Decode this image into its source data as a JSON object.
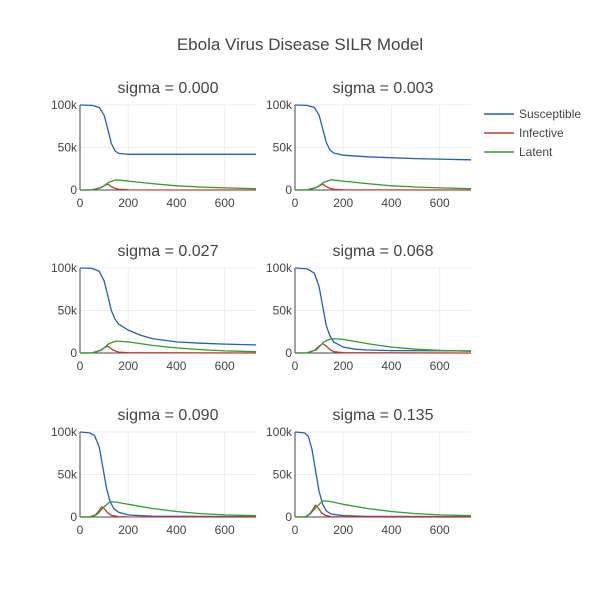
{
  "title": "Ebola Virus Disease SILR Model",
  "colors": {
    "Susceptible": "#1f5fbf",
    "Infective": "#c0392b",
    "Latent": "#2e9e2e",
    "grid": "#eeeeee",
    "axis": "#444444",
    "text": "#444444"
  },
  "legend": {
    "placement": "top-right",
    "items": [
      "Susceptible",
      "Infective",
      "Latent"
    ]
  },
  "chart_data": [
    {
      "type": "line",
      "title": "sigma = 0.000",
      "xlim": [
        0,
        730
      ],
      "ylim": [
        0,
        100000
      ],
      "xticks": [
        0,
        200,
        400,
        600
      ],
      "xtick_labels": [
        "0",
        "200",
        "400",
        "600"
      ],
      "yticks": [
        0,
        50000,
        100000
      ],
      "ytick_labels": [
        "0",
        "50k",
        "100k"
      ],
      "series": [
        {
          "name": "Susceptible",
          "x": [
            0,
            50,
            80,
            100,
            115,
            130,
            145,
            160,
            200,
            300,
            730
          ],
          "y": [
            100000,
            99500,
            97000,
            88000,
            72000,
            55000,
            46000,
            43000,
            42000,
            42000,
            42000
          ]
        },
        {
          "name": "Infective",
          "x": [
            0,
            50,
            80,
            100,
            115,
            125,
            140,
            160,
            200,
            730
          ],
          "y": [
            0,
            0,
            2000,
            5000,
            7000,
            5000,
            2500,
            800,
            200,
            0
          ]
        },
        {
          "name": "Latent",
          "x": [
            0,
            50,
            90,
            120,
            150,
            200,
            300,
            400,
            500,
            600,
            730
          ],
          "y": [
            0,
            200,
            3000,
            9000,
            12000,
            10500,
            7500,
            5000,
            3500,
            2500,
            1500
          ]
        }
      ]
    },
    {
      "type": "line",
      "title": "sigma = 0.003",
      "xlim": [
        0,
        730
      ],
      "ylim": [
        0,
        100000
      ],
      "xticks": [
        0,
        200,
        400,
        600
      ],
      "xtick_labels": [
        "0",
        "200",
        "400",
        "600"
      ],
      "yticks": [
        0,
        50000,
        100000
      ],
      "ytick_labels": [
        "0",
        "50k",
        "100k"
      ],
      "series": [
        {
          "name": "Susceptible",
          "x": [
            0,
            50,
            80,
            100,
            115,
            130,
            145,
            160,
            200,
            300,
            500,
            730
          ],
          "y": [
            100000,
            99500,
            97000,
            88000,
            72000,
            56000,
            47000,
            43500,
            41000,
            39000,
            37000,
            35500
          ]
        },
        {
          "name": "Infective",
          "x": [
            0,
            50,
            80,
            100,
            115,
            125,
            140,
            160,
            200,
            730
          ],
          "y": [
            0,
            0,
            2000,
            5000,
            7000,
            5000,
            2500,
            800,
            200,
            0
          ]
        },
        {
          "name": "Latent",
          "x": [
            0,
            50,
            90,
            120,
            150,
            200,
            300,
            400,
            500,
            600,
            730
          ],
          "y": [
            0,
            200,
            3000,
            9000,
            12000,
            10500,
            7500,
            5000,
            3500,
            2500,
            1500
          ]
        }
      ]
    },
    {
      "type": "line",
      "title": "sigma = 0.027",
      "xlim": [
        0,
        730
      ],
      "ylim": [
        0,
        100000
      ],
      "xticks": [
        0,
        200,
        400,
        600
      ],
      "xtick_labels": [
        "0",
        "200",
        "400",
        "600"
      ],
      "yticks": [
        0,
        50000,
        100000
      ],
      "ytick_labels": [
        "0",
        "50k",
        "100k"
      ],
      "series": [
        {
          "name": "Susceptible",
          "x": [
            0,
            50,
            80,
            100,
            115,
            130,
            145,
            160,
            200,
            250,
            300,
            400,
            500,
            600,
            730
          ],
          "y": [
            100000,
            99500,
            96000,
            85000,
            68000,
            50000,
            40000,
            34000,
            27000,
            21000,
            17000,
            13000,
            11500,
            10500,
            9500
          ]
        },
        {
          "name": "Infective",
          "x": [
            0,
            50,
            80,
            100,
            115,
            125,
            140,
            160,
            200,
            730
          ],
          "y": [
            0,
            0,
            2500,
            6000,
            8000,
            6000,
            3000,
            1000,
            300,
            0
          ]
        },
        {
          "name": "Latent",
          "x": [
            0,
            50,
            90,
            120,
            150,
            200,
            300,
            400,
            500,
            600,
            730
          ],
          "y": [
            0,
            200,
            3500,
            11000,
            14000,
            13000,
            9000,
            6000,
            4000,
            2500,
            1500
          ]
        }
      ]
    },
    {
      "type": "line",
      "title": "sigma = 0.068",
      "xlim": [
        0,
        730
      ],
      "ylim": [
        0,
        100000
      ],
      "xticks": [
        0,
        200,
        400,
        600
      ],
      "xtick_labels": [
        "0",
        "200",
        "400",
        "600"
      ],
      "yticks": [
        0,
        50000,
        100000
      ],
      "ytick_labels": [
        "0",
        "50k",
        "100k"
      ],
      "series": [
        {
          "name": "Susceptible",
          "x": [
            0,
            50,
            80,
            100,
            115,
            130,
            145,
            160,
            200,
            250,
            300,
            400,
            730
          ],
          "y": [
            100000,
            99000,
            94000,
            78000,
            55000,
            32000,
            20000,
            13000,
            7000,
            4500,
            3500,
            2800,
            2500
          ]
        },
        {
          "name": "Infective",
          "x": [
            0,
            50,
            80,
            100,
            115,
            130,
            145,
            160,
            200,
            730
          ],
          "y": [
            0,
            0,
            3000,
            8000,
            11000,
            8000,
            4000,
            1500,
            300,
            0
          ]
        },
        {
          "name": "Latent",
          "x": [
            0,
            50,
            90,
            120,
            150,
            200,
            300,
            400,
            500,
            600,
            730
          ],
          "y": [
            0,
            200,
            4000,
            13000,
            17000,
            16000,
            11000,
            7000,
            4500,
            3000,
            2000
          ]
        }
      ]
    },
    {
      "type": "line",
      "title": "sigma = 0.090",
      "xlim": [
        0,
        730
      ],
      "ylim": [
        0,
        100000
      ],
      "xticks": [
        0,
        200,
        400,
        600
      ],
      "xtick_labels": [
        "0",
        "200",
        "400",
        "600"
      ],
      "yticks": [
        0,
        50000,
        100000
      ],
      "ytick_labels": [
        "0",
        "50k",
        "100k"
      ],
      "series": [
        {
          "name": "Susceptible",
          "x": [
            0,
            40,
            60,
            80,
            95,
            110,
            125,
            140,
            160,
            200,
            250,
            300,
            730
          ],
          "y": [
            100000,
            99000,
            96000,
            82000,
            58000,
            34000,
            18000,
            10000,
            5500,
            2500,
            1500,
            1000,
            500
          ]
        },
        {
          "name": "Infective",
          "x": [
            0,
            40,
            60,
            75,
            90,
            100,
            115,
            130,
            160,
            200,
            730
          ],
          "y": [
            0,
            0,
            1500,
            6000,
            12000,
            10000,
            5000,
            2000,
            500,
            100,
            0
          ]
        },
        {
          "name": "Latent",
          "x": [
            0,
            40,
            70,
            100,
            125,
            150,
            200,
            300,
            400,
            500,
            600,
            730
          ],
          "y": [
            0,
            200,
            3000,
            12000,
            18000,
            17500,
            15000,
            10000,
            6500,
            4000,
            2500,
            1500
          ]
        }
      ]
    },
    {
      "type": "line",
      "title": "sigma = 0.135",
      "xlim": [
        0,
        730
      ],
      "ylim": [
        0,
        100000
      ],
      "xticks": [
        0,
        200,
        400,
        600
      ],
      "xtick_labels": [
        "0",
        "200",
        "400",
        "600"
      ],
      "yticks": [
        0,
        50000,
        100000
      ],
      "ytick_labels": [
        "0",
        "50k",
        "100k"
      ],
      "series": [
        {
          "name": "Susceptible",
          "x": [
            0,
            40,
            55,
            70,
            85,
            100,
            115,
            130,
            150,
            200,
            300,
            730
          ],
          "y": [
            100000,
            99000,
            95000,
            80000,
            55000,
            30000,
            15000,
            7000,
            3500,
            1500,
            700,
            300
          ]
        },
        {
          "name": "Infective",
          "x": [
            0,
            40,
            55,
            70,
            85,
            95,
            110,
            125,
            150,
            200,
            730
          ],
          "y": [
            0,
            0,
            2000,
            7000,
            14000,
            11000,
            5000,
            2000,
            500,
            100,
            0
          ]
        },
        {
          "name": "Latent",
          "x": [
            0,
            40,
            60,
            90,
            115,
            140,
            200,
            300,
            400,
            500,
            600,
            730
          ],
          "y": [
            0,
            200,
            3000,
            12000,
            19000,
            18500,
            15000,
            10000,
            6500,
            4000,
            2500,
            1500
          ]
        }
      ]
    }
  ]
}
